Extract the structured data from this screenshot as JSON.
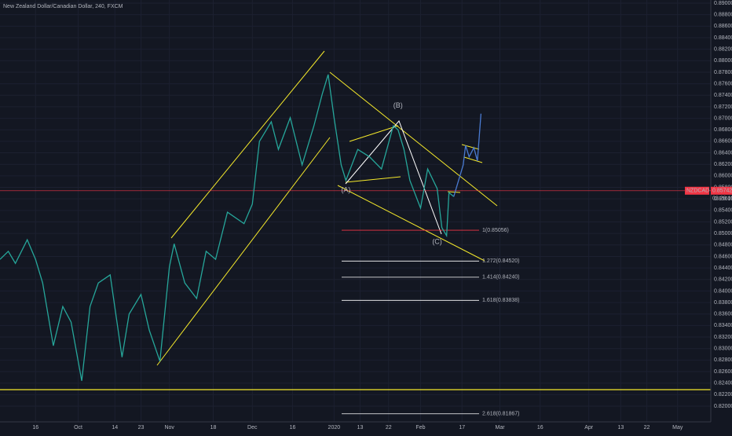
{
  "chart_data": {
    "type": "line",
    "title": "New Zealand Dollar/Canadian Dollar, 240, FXCM",
    "xlim": [
      0,
      600
    ],
    "ylim": [
      0.81727,
      0.89055
    ],
    "grid": true,
    "xticks": [
      {
        "value": 30,
        "label": "16"
      },
      {
        "value": 66,
        "label": "Oct"
      },
      {
        "value": 97,
        "label": "14"
      },
      {
        "value": 119,
        "label": "23"
      },
      {
        "value": 143,
        "label": "Nov"
      },
      {
        "value": 180,
        "label": "18"
      },
      {
        "value": 213,
        "label": "Dec"
      },
      {
        "value": 247,
        "label": "16"
      },
      {
        "value": 282,
        "label": "2020"
      },
      {
        "value": 304,
        "label": "13"
      },
      {
        "value": 328,
        "label": "22"
      },
      {
        "value": 355,
        "label": "Feb"
      },
      {
        "value": 390,
        "label": "17"
      },
      {
        "value": 422,
        "label": "Mar"
      },
      {
        "value": 456,
        "label": "16"
      },
      {
        "value": 497,
        "label": "Apr"
      },
      {
        "value": 524,
        "label": "13"
      },
      {
        "value": 546,
        "label": "22"
      },
      {
        "value": 572,
        "label": "May"
      }
    ],
    "yticks": [
      {
        "value": 0.82,
        "label": "0.82000"
      },
      {
        "value": 0.822,
        "label": "0.82200"
      },
      {
        "value": 0.824,
        "label": "0.82400"
      },
      {
        "value": 0.826,
        "label": "0.82600"
      },
      {
        "value": 0.828,
        "label": "0.82800"
      },
      {
        "value": 0.83,
        "label": "0.83000"
      },
      {
        "value": 0.832,
        "label": "0.83200"
      },
      {
        "value": 0.834,
        "label": "0.83400"
      },
      {
        "value": 0.836,
        "label": "0.83600"
      },
      {
        "value": 0.838,
        "label": "0.83800"
      },
      {
        "value": 0.84,
        "label": "0.84000"
      },
      {
        "value": 0.842,
        "label": "0.84200"
      },
      {
        "value": 0.844,
        "label": "0.84400"
      },
      {
        "value": 0.846,
        "label": "0.84600"
      },
      {
        "value": 0.848,
        "label": "0.84800"
      },
      {
        "value": 0.85,
        "label": "0.85000"
      },
      {
        "value": 0.852,
        "label": "0.85200"
      },
      {
        "value": 0.854,
        "label": "0.85400"
      },
      {
        "value": 0.856,
        "label": "0.85600"
      },
      {
        "value": 0.858,
        "label": "0.85800"
      },
      {
        "value": 0.86,
        "label": "0.86000"
      },
      {
        "value": 0.862,
        "label": "0.86200"
      },
      {
        "value": 0.864,
        "label": "0.86400"
      },
      {
        "value": 0.866,
        "label": "0.86600"
      },
      {
        "value": 0.868,
        "label": "0.86800"
      },
      {
        "value": 0.87,
        "label": "0.87000"
      },
      {
        "value": 0.872,
        "label": "0.87200"
      },
      {
        "value": 0.874,
        "label": "0.87400"
      },
      {
        "value": 0.876,
        "label": "0.87600"
      },
      {
        "value": 0.878,
        "label": "0.87800"
      },
      {
        "value": 0.88,
        "label": "0.88000"
      },
      {
        "value": 0.882,
        "label": "0.88200"
      },
      {
        "value": 0.884,
        "label": "0.88400"
      },
      {
        "value": 0.886,
        "label": "0.88600"
      },
      {
        "value": 0.888,
        "label": "0.88800"
      },
      {
        "value": 0.89,
        "label": "0.89000"
      }
    ],
    "series": [
      {
        "name": "NZDCAD",
        "color": "#26a69a",
        "x": [
          0,
          7,
          13,
          23,
          30,
          36,
          45,
          53,
          60,
          69,
          76,
          83,
          93,
          103,
          109,
          119,
          126,
          135,
          143,
          147,
          156,
          166,
          174,
          182,
          192,
          206,
          213,
          219,
          229,
          235,
          245,
          255,
          265,
          272,
          277,
          282,
          288,
          292,
          302,
          312,
          322,
          332,
          336,
          341,
          346,
          355,
          361,
          369,
          373,
          377,
          379,
          383
        ],
        "values": [
          0.8455,
          0.8469,
          0.8448,
          0.8489,
          0.8455,
          0.8414,
          0.8305,
          0.8373,
          0.8346,
          0.8244,
          0.8373,
          0.8414,
          0.8428,
          0.8285,
          0.836,
          0.8394,
          0.8332,
          0.8278,
          0.8442,
          0.8482,
          0.8414,
          0.8387,
          0.8469,
          0.8455,
          0.8537,
          0.8517,
          0.8551,
          0.866,
          0.8694,
          0.8646,
          0.8701,
          0.8619,
          0.8687,
          0.8742,
          0.8776,
          0.8701,
          0.8619,
          0.8592,
          0.8646,
          0.8633,
          0.8612,
          0.8687,
          0.868,
          0.8646,
          0.8592,
          0.8544,
          0.8612,
          0.8578,
          0.851,
          0.8496,
          0.8571,
          0.8564
        ]
      },
      {
        "name": "Projection",
        "color": "#4a7bd1",
        "x": [
          383,
          391,
          393,
          396,
          400,
          403,
          406
        ],
        "values": [
          0.8564,
          0.8619,
          0.8653,
          0.8633,
          0.8649,
          0.8626,
          0.8708
        ]
      }
    ],
    "annotations": [
      {
        "text": "(A)",
        "x": 292,
        "y": 0.8575
      },
      {
        "text": "(B)",
        "x": 336,
        "y": 0.8722
      },
      {
        "text": "(C)",
        "x": 369,
        "y": 0.8485
      }
    ],
    "fib_levels": [
      {
        "value": 0.85056,
        "label": "1(0.85056)",
        "color": "#f23645"
      },
      {
        "value": 0.8452,
        "label": "1.272(0.84520)",
        "color": "#ffffff"
      },
      {
        "value": 0.8424,
        "label": "1.414(0.84240)",
        "color": "#ffffff"
      },
      {
        "value": 0.83838,
        "label": "1.618(0.83838)",
        "color": "#ffffff"
      },
      {
        "value": 0.81867,
        "label": "2.618(0.81867)",
        "color": "#ffffff"
      }
    ],
    "current_price": {
      "value": 0.85742,
      "label": "0.85742",
      "symbol": "NZDCAD",
      "countdown": "03:28:19"
    }
  }
}
